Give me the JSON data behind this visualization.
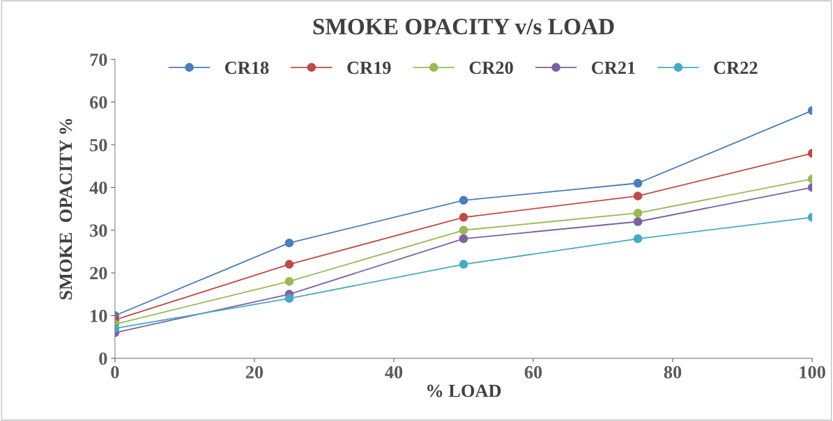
{
  "chart_data": {
    "type": "line",
    "title": "SMOKE OPACITY v/s LOAD",
    "xlabel": "% LOAD",
    "ylabel": "SMOKE  OPACITY %",
    "x": [
      0,
      25,
      50,
      75,
      100
    ],
    "series": [
      {
        "name": "CR18",
        "color": "#4a7ebb",
        "values": [
          10,
          27,
          37,
          41,
          58
        ]
      },
      {
        "name": "CR19",
        "color": "#be4b48",
        "values": [
          9,
          22,
          33,
          38,
          48
        ]
      },
      {
        "name": "CR20",
        "color": "#98b954",
        "values": [
          8,
          18,
          30,
          34,
          42
        ]
      },
      {
        "name": "CR21",
        "color": "#7d60a0",
        "values": [
          6,
          15,
          28,
          32,
          40
        ]
      },
      {
        "name": "CR22",
        "color": "#46aac5",
        "values": [
          7,
          14,
          22,
          28,
          33
        ]
      }
    ],
    "xlim": [
      0,
      100
    ],
    "xticks": [
      0,
      20,
      40,
      60,
      80,
      100
    ],
    "ylim": [
      0,
      70
    ],
    "yticks": [
      0,
      10,
      20,
      30,
      40,
      50,
      60,
      70
    ],
    "grid": false,
    "legend": "top",
    "marker": "circle",
    "line_style": "solid"
  }
}
